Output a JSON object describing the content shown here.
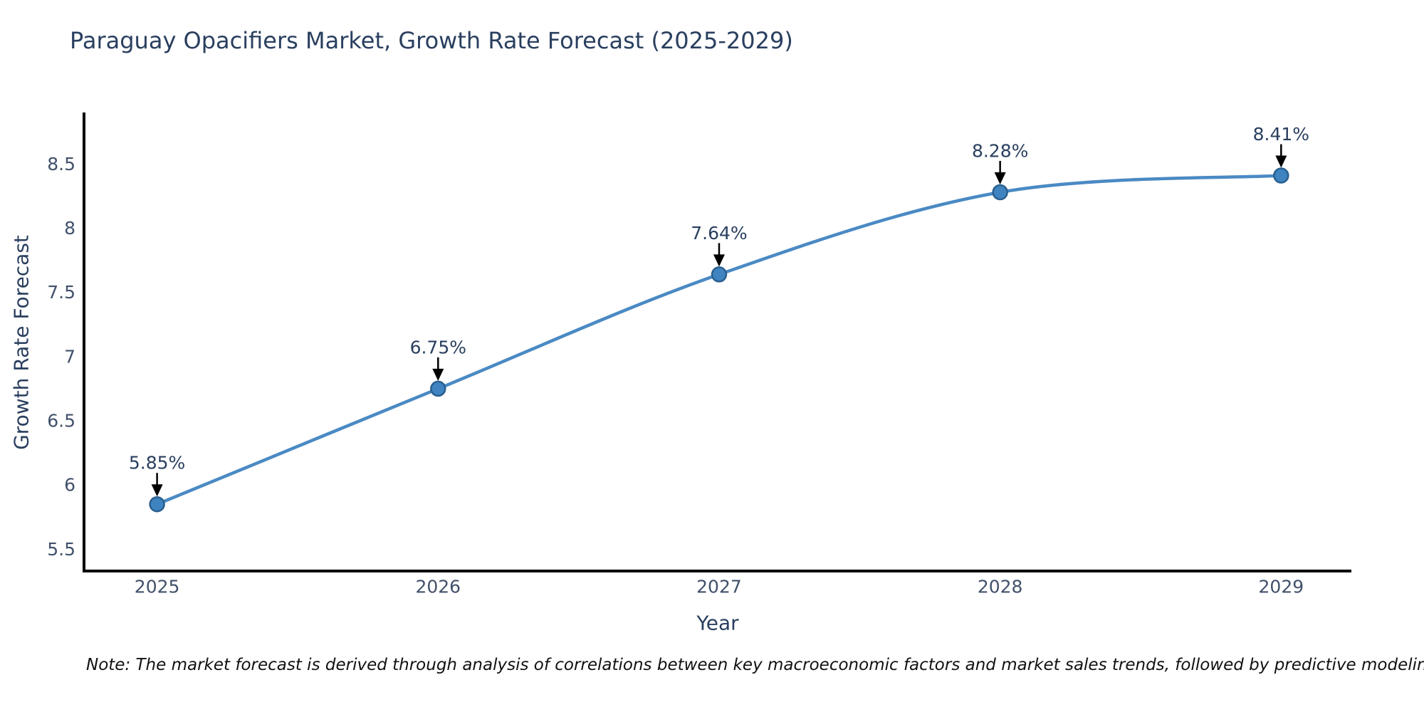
{
  "title": "Paraguay Opacifiers Market, Growth Rate Forecast (2025-2029)",
  "note": "Note: The market forecast is derived through analysis of correlations between key macroeconomic factors and market sales trends, followed by predictive modeling to project future sales",
  "chart_data": {
    "type": "line",
    "title": "Paraguay Opacifiers Market, Growth Rate Forecast (2025-2029)",
    "xlabel": "Year",
    "ylabel": "Growth Rate Forecast",
    "x": [
      2025,
      2026,
      2027,
      2028,
      2029
    ],
    "values": [
      5.85,
      6.75,
      7.64,
      8.28,
      8.41
    ],
    "point_labels": [
      "5.85%",
      "6.75%",
      "7.64%",
      "8.28%",
      "8.41%"
    ],
    "y_ticks": [
      5.5,
      6,
      6.5,
      7,
      7.5,
      8,
      8.5
    ],
    "xlim": [
      2024.74,
      2029.25
    ],
    "ylim": [
      5.33,
      8.89
    ],
    "grid": false,
    "line_shape": "spline",
    "legend": "none",
    "colors": {
      "line": "#4a8ac4",
      "marker_fill": "#3f84c0",
      "marker_edge": "#2a5f8f",
      "axis_line": "#000000",
      "tick_text": "#42516b",
      "annotation_text": "#2a3f5f",
      "annotation_arrow": "#000000"
    }
  }
}
